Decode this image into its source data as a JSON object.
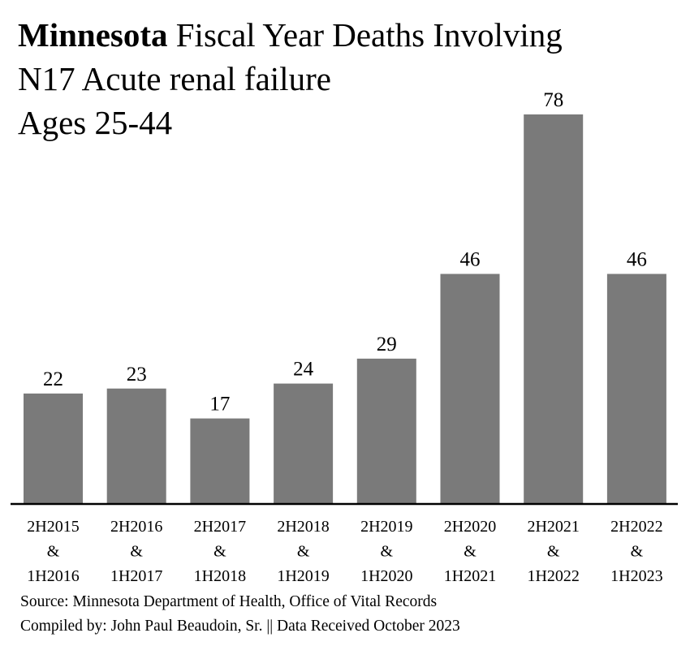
{
  "chart_data": {
    "type": "bar",
    "title_bold": "Minnesota",
    "title_rest": " Fiscal Year Deaths Involving",
    "subtitle1": "N17 Acute renal failure",
    "subtitle2": "Ages 25-44",
    "categories": [
      [
        "2H2015",
        "&",
        "1H2016"
      ],
      [
        "2H2016",
        "&",
        "1H2017"
      ],
      [
        "2H2017",
        "&",
        "1H2018"
      ],
      [
        "2H2018",
        "&",
        "1H2019"
      ],
      [
        "2H2019",
        "&",
        "1H2020"
      ],
      [
        "2H2020",
        "&",
        "1H2021"
      ],
      [
        "2H2021",
        "&",
        "1H2022"
      ],
      [
        "2H2022",
        "&",
        "1H2023"
      ]
    ],
    "values": [
      22,
      23,
      17,
      24,
      29,
      46,
      78,
      46
    ],
    "ylim": [
      0,
      78
    ],
    "grid": false,
    "bar_color": "#7a7a7a",
    "xlabel": "",
    "ylabel": ""
  },
  "source": "Source:  Minnesota Department of Health, Office of Vital Records",
  "compiled": "Compiled by:  John Paul Beaudoin, Sr. || Data Received October 2023"
}
